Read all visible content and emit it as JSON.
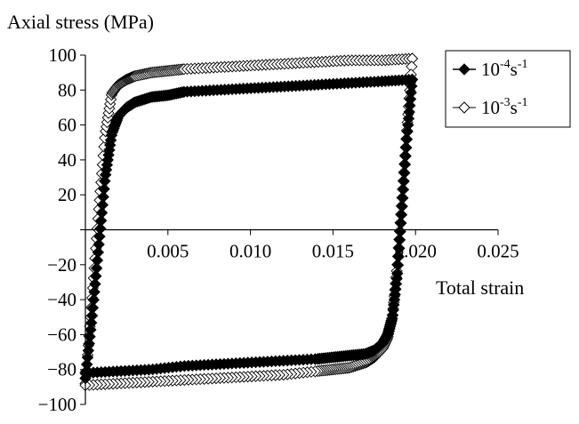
{
  "chart_data": {
    "type": "scatter",
    "title": "",
    "xlabel": "Total strain",
    "ylabel": "Axial stress (MPa)",
    "xlim": [
      0,
      0.025
    ],
    "ylim": [
      -100,
      100
    ],
    "x_ticks": [
      "0.005",
      "0.010",
      "0.015",
      "0.020",
      "0.025"
    ],
    "y_ticks": [
      "100",
      "80",
      "60",
      "40",
      "20",
      "−20",
      "−40",
      "−60",
      "−80",
      "−100"
    ],
    "grid": false,
    "legend_position": "top-right",
    "series": [
      {
        "name_base": "10",
        "name_exp1": "-4",
        "name_unit": "s",
        "name_exp2": "-1",
        "marker": "filled-diamond",
        "color": "#000000",
        "upper_branch": {
          "x": [
            0,
            0.0004,
            0.0008,
            0.0012,
            0.0016,
            0.002,
            0.0025,
            0.003,
            0.004,
            0.005,
            0.006,
            0.008,
            0.01,
            0.012,
            0.014,
            0.016,
            0.018,
            0.0198
          ],
          "y": [
            -85,
            -50,
            -10,
            30,
            55,
            65,
            70,
            73,
            76,
            77,
            79,
            80,
            81,
            82,
            83,
            84,
            85,
            86
          ]
        },
        "lower_branch": {
          "x": [
            0.0198,
            0.0195,
            0.0192,
            0.0189,
            0.0186,
            0.0183,
            0.018,
            0.0175,
            0.017,
            0.016,
            0.015,
            0.014,
            0.012,
            0.01,
            0.008,
            0.006,
            0.004,
            0.002,
            0
          ],
          "y": [
            86,
            55,
            15,
            -25,
            -50,
            -60,
            -65,
            -69,
            -71,
            -72,
            -73,
            -74,
            -75,
            -76,
            -77,
            -78,
            -80,
            -81,
            -82
          ]
        }
      },
      {
        "name_base": "10",
        "name_exp1": "-3",
        "name_unit": "s",
        "name_exp2": "-1",
        "marker": "open-diamond",
        "color": "#000000",
        "upper_branch": {
          "x": [
            0,
            0.0004,
            0.0008,
            0.0012,
            0.0016,
            0.002,
            0.0025,
            0.003,
            0.004,
            0.005,
            0.006,
            0.008,
            0.01,
            0.012,
            0.014,
            0.016,
            0.018,
            0.0198
          ],
          "y": [
            -88,
            -40,
            10,
            55,
            78,
            83,
            86,
            88,
            90,
            91,
            92,
            93,
            94,
            95,
            96,
            97,
            97,
            98
          ]
        },
        "lower_branch": {
          "x": [
            0.0198,
            0.0195,
            0.0192,
            0.0189,
            0.0186,
            0.0183,
            0.018,
            0.0175,
            0.017,
            0.016,
            0.015,
            0.014,
            0.012,
            0.01,
            0.008,
            0.006,
            0.004,
            0.002,
            0
          ],
          "y": [
            98,
            60,
            20,
            -20,
            -50,
            -62,
            -68,
            -73,
            -76,
            -79,
            -80,
            -81,
            -83,
            -84,
            -85,
            -86,
            -87,
            -88,
            -89
          ]
        }
      }
    ]
  }
}
